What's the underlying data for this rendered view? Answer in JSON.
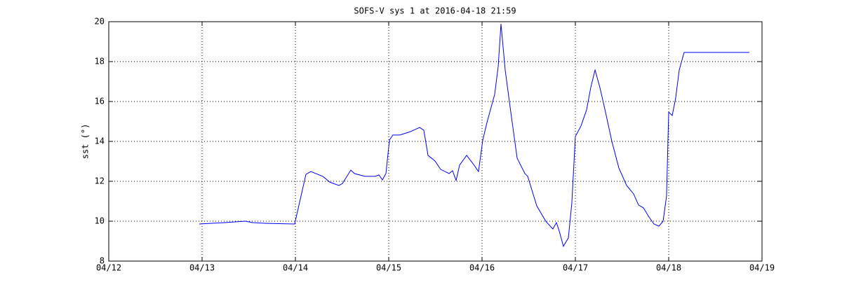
{
  "chart_data": {
    "type": "line",
    "title": "SOFS-V sys 1 at 2016-04-18 21:59",
    "y_label": "sst (°)",
    "x": [
      12.97,
      13.241,
      13.466,
      13.541,
      13.692,
      13.992,
      14.113,
      14.165,
      14.293,
      14.368,
      14.466,
      14.504,
      14.594,
      14.632,
      14.744,
      14.857,
      14.895,
      14.932,
      14.97,
      15.008,
      15.045,
      15.12,
      15.233,
      15.331,
      15.376,
      15.421,
      15.496,
      15.556,
      15.647,
      15.684,
      15.722,
      15.759,
      15.835,
      15.91,
      15.962,
      16.008,
      16.053,
      16.135,
      16.173,
      16.203,
      16.248,
      16.308,
      16.376,
      16.459,
      16.489,
      16.586,
      16.684,
      16.759,
      16.797,
      16.827,
      16.872,
      16.925,
      16.962,
      17.0,
      17.06,
      17.12,
      17.165,
      17.211,
      17.263,
      17.323,
      17.391,
      17.466,
      17.549,
      17.624,
      17.677,
      17.729,
      17.789,
      17.842,
      17.895,
      17.94,
      17.977,
      18.0,
      18.038,
      18.075,
      18.113,
      18.165,
      18.865
    ],
    "series": [
      {
        "name": "sst",
        "color": "#0000ff",
        "values": [
          9.86,
          9.93,
          10.0,
          9.93,
          9.89,
          9.86,
          12.35,
          12.49,
          12.25,
          11.96,
          11.79,
          11.89,
          12.56,
          12.39,
          12.25,
          12.25,
          12.32,
          12.07,
          12.39,
          14.07,
          14.32,
          14.32,
          14.49,
          14.7,
          14.56,
          13.3,
          13.02,
          12.6,
          12.39,
          12.53,
          12.04,
          12.81,
          13.3,
          12.84,
          12.49,
          14.07,
          14.95,
          16.35,
          17.75,
          19.89,
          17.58,
          15.47,
          13.16,
          12.39,
          12.25,
          10.77,
          9.99,
          9.61,
          9.93,
          9.51,
          8.74,
          9.16,
          10.91,
          14.25,
          14.77,
          15.58,
          16.7,
          17.58,
          16.7,
          15.47,
          14.0,
          12.67,
          11.79,
          11.37,
          10.81,
          10.67,
          10.21,
          9.86,
          9.75,
          10.0,
          11.26,
          15.47,
          15.3,
          16.18,
          17.58,
          18.46,
          18.46
        ]
      }
    ],
    "xlim": [
      12,
      19
    ],
    "xticks": [
      {
        "value": 12,
        "label": "04/12"
      },
      {
        "value": 13,
        "label": "04/13"
      },
      {
        "value": 14,
        "label": "04/14"
      },
      {
        "value": 15,
        "label": "04/15"
      },
      {
        "value": 16,
        "label": "04/16"
      },
      {
        "value": 17,
        "label": "04/17"
      },
      {
        "value": 18,
        "label": "04/18"
      },
      {
        "value": 19,
        "label": "04/19"
      }
    ],
    "ylim": [
      8,
      20
    ],
    "yticks": [
      8,
      10,
      12,
      14,
      16,
      18,
      20
    ],
    "grid": true
  }
}
